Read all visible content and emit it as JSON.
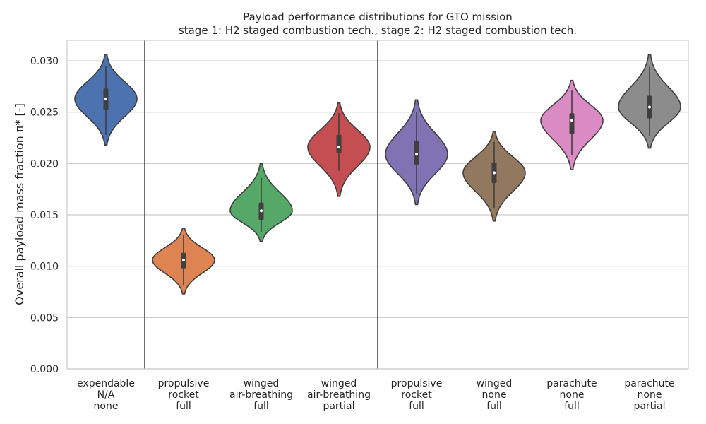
{
  "chart_data": {
    "type": "violin",
    "title_lines": [
      "Payload performance distributions for GTO mission",
      "stage 1: H2 staged combustion tech., stage 2: H2 staged combustion tech."
    ],
    "ylabel": "Overall payload mass fraction π* [-]",
    "ylim": [
      0,
      0.032
    ],
    "yticks": [
      0.0,
      0.005,
      0.01,
      0.015,
      0.02,
      0.025,
      0.03
    ],
    "ytick_labels": [
      "0.000",
      "0.005",
      "0.010",
      "0.015",
      "0.020",
      "0.025",
      "0.030"
    ],
    "grid": "horizontal",
    "group_separators_after_index": [
      0,
      3
    ],
    "categories": [
      {
        "label_lines": [
          "expendable",
          "N/A",
          "none"
        ],
        "color": "#4c72b0",
        "min": 0.0218,
        "max": 0.0306,
        "q1": 0.0252,
        "median": 0.0263,
        "q3": 0.0273,
        "whisker_low": 0.0228,
        "whisker_high": 0.0295
      },
      {
        "label_lines": [
          "propulsive",
          "rocket",
          "full"
        ],
        "color": "#dd8452",
        "min": 0.0073,
        "max": 0.0137,
        "q1": 0.0098,
        "median": 0.0106,
        "q3": 0.0113,
        "whisker_low": 0.0081,
        "whisker_high": 0.013
      },
      {
        "label_lines": [
          "winged",
          "air-breathing",
          "full"
        ],
        "color": "#55a868",
        "min": 0.0124,
        "max": 0.02,
        "q1": 0.0145,
        "median": 0.0154,
        "q3": 0.0162,
        "whisker_low": 0.0133,
        "whisker_high": 0.0186
      },
      {
        "label_lines": [
          "winged",
          "air-breathing",
          "partial"
        ],
        "color": "#c44e52",
        "min": 0.0168,
        "max": 0.0259,
        "q1": 0.021,
        "median": 0.0216,
        "q3": 0.0228,
        "whisker_low": 0.0193,
        "whisker_high": 0.0249
      },
      {
        "label_lines": [
          "propulsive",
          "rocket",
          "full"
        ],
        "color": "#8172b3",
        "min": 0.016,
        "max": 0.0262,
        "q1": 0.0199,
        "median": 0.0209,
        "q3": 0.0222,
        "whisker_low": 0.017,
        "whisker_high": 0.025
      },
      {
        "label_lines": [
          "winged",
          "none",
          "full"
        ],
        "color": "#937860",
        "min": 0.0144,
        "max": 0.0231,
        "q1": 0.0181,
        "median": 0.0191,
        "q3": 0.0201,
        "whisker_low": 0.0156,
        "whisker_high": 0.0221
      },
      {
        "label_lines": [
          "parachute",
          "none",
          "full"
        ],
        "color": "#da8bc3",
        "min": 0.0194,
        "max": 0.0281,
        "q1": 0.0229,
        "median": 0.0242,
        "q3": 0.0249,
        "whisker_low": 0.0208,
        "whisker_high": 0.0271
      },
      {
        "label_lines": [
          "parachute",
          "none",
          "partial"
        ],
        "color": "#8c8c8c",
        "min": 0.0215,
        "max": 0.0306,
        "q1": 0.0244,
        "median": 0.0255,
        "q3": 0.0266,
        "whisker_low": 0.0227,
        "whisker_high": 0.0294
      }
    ]
  }
}
